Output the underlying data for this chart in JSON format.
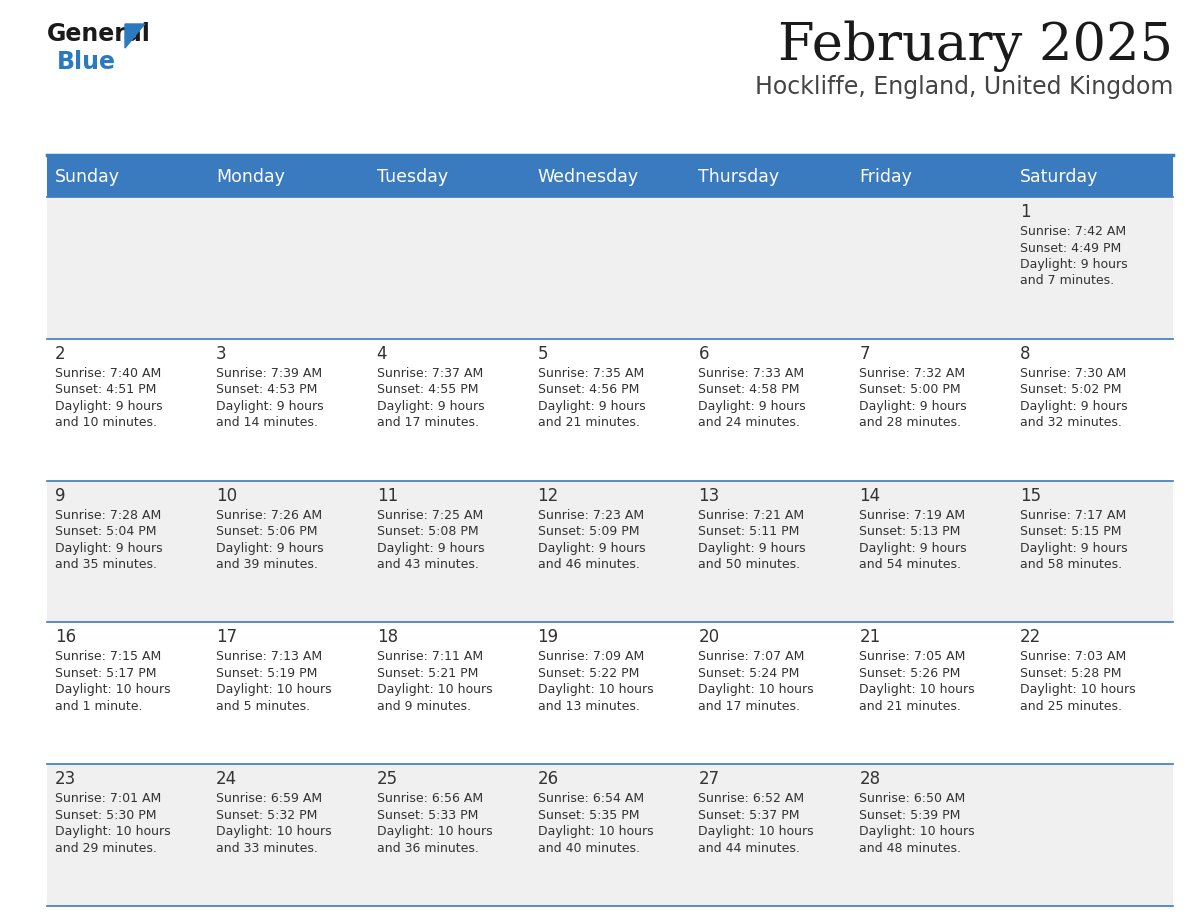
{
  "title": "February 2025",
  "subtitle": "Hockliffe, England, United Kingdom",
  "days_of_week": [
    "Sunday",
    "Monday",
    "Tuesday",
    "Wednesday",
    "Thursday",
    "Friday",
    "Saturday"
  ],
  "header_bg": "#3a7abf",
  "header_text": "#ffffff",
  "row_bg_odd": "#f0f0f0",
  "row_bg_even": "#ffffff",
  "border_color": "#3a7abf",
  "text_color": "#333333",
  "title_color": "#1a1a1a",
  "subtitle_color": "#444444",
  "calendar_data": [
    [
      null,
      null,
      null,
      null,
      null,
      null,
      {
        "day": "1",
        "sunrise": "7:42 AM",
        "sunset": "4:49 PM",
        "daylight": "9 hours",
        "daylight2": "and 7 minutes."
      }
    ],
    [
      {
        "day": "2",
        "sunrise": "7:40 AM",
        "sunset": "4:51 PM",
        "daylight": "9 hours",
        "daylight2": "and 10 minutes."
      },
      {
        "day": "3",
        "sunrise": "7:39 AM",
        "sunset": "4:53 PM",
        "daylight": "9 hours",
        "daylight2": "and 14 minutes."
      },
      {
        "day": "4",
        "sunrise": "7:37 AM",
        "sunset": "4:55 PM",
        "daylight": "9 hours",
        "daylight2": "and 17 minutes."
      },
      {
        "day": "5",
        "sunrise": "7:35 AM",
        "sunset": "4:56 PM",
        "daylight": "9 hours",
        "daylight2": "and 21 minutes."
      },
      {
        "day": "6",
        "sunrise": "7:33 AM",
        "sunset": "4:58 PM",
        "daylight": "9 hours",
        "daylight2": "and 24 minutes."
      },
      {
        "day": "7",
        "sunrise": "7:32 AM",
        "sunset": "5:00 PM",
        "daylight": "9 hours",
        "daylight2": "and 28 minutes."
      },
      {
        "day": "8",
        "sunrise": "7:30 AM",
        "sunset": "5:02 PM",
        "daylight": "9 hours",
        "daylight2": "and 32 minutes."
      }
    ],
    [
      {
        "day": "9",
        "sunrise": "7:28 AM",
        "sunset": "5:04 PM",
        "daylight": "9 hours",
        "daylight2": "and 35 minutes."
      },
      {
        "day": "10",
        "sunrise": "7:26 AM",
        "sunset": "5:06 PM",
        "daylight": "9 hours",
        "daylight2": "and 39 minutes."
      },
      {
        "day": "11",
        "sunrise": "7:25 AM",
        "sunset": "5:08 PM",
        "daylight": "9 hours",
        "daylight2": "and 43 minutes."
      },
      {
        "day": "12",
        "sunrise": "7:23 AM",
        "sunset": "5:09 PM",
        "daylight": "9 hours",
        "daylight2": "and 46 minutes."
      },
      {
        "day": "13",
        "sunrise": "7:21 AM",
        "sunset": "5:11 PM",
        "daylight": "9 hours",
        "daylight2": "and 50 minutes."
      },
      {
        "day": "14",
        "sunrise": "7:19 AM",
        "sunset": "5:13 PM",
        "daylight": "9 hours",
        "daylight2": "and 54 minutes."
      },
      {
        "day": "15",
        "sunrise": "7:17 AM",
        "sunset": "5:15 PM",
        "daylight": "9 hours",
        "daylight2": "and 58 minutes."
      }
    ],
    [
      {
        "day": "16",
        "sunrise": "7:15 AM",
        "sunset": "5:17 PM",
        "daylight": "10 hours",
        "daylight2": "and 1 minute."
      },
      {
        "day": "17",
        "sunrise": "7:13 AM",
        "sunset": "5:19 PM",
        "daylight": "10 hours",
        "daylight2": "and 5 minutes."
      },
      {
        "day": "18",
        "sunrise": "7:11 AM",
        "sunset": "5:21 PM",
        "daylight": "10 hours",
        "daylight2": "and 9 minutes."
      },
      {
        "day": "19",
        "sunrise": "7:09 AM",
        "sunset": "5:22 PM",
        "daylight": "10 hours",
        "daylight2": "and 13 minutes."
      },
      {
        "day": "20",
        "sunrise": "7:07 AM",
        "sunset": "5:24 PM",
        "daylight": "10 hours",
        "daylight2": "and 17 minutes."
      },
      {
        "day": "21",
        "sunrise": "7:05 AM",
        "sunset": "5:26 PM",
        "daylight": "10 hours",
        "daylight2": "and 21 minutes."
      },
      {
        "day": "22",
        "sunrise": "7:03 AM",
        "sunset": "5:28 PM",
        "daylight": "10 hours",
        "daylight2": "and 25 minutes."
      }
    ],
    [
      {
        "day": "23",
        "sunrise": "7:01 AM",
        "sunset": "5:30 PM",
        "daylight": "10 hours",
        "daylight2": "and 29 minutes."
      },
      {
        "day": "24",
        "sunrise": "6:59 AM",
        "sunset": "5:32 PM",
        "daylight": "10 hours",
        "daylight2": "and 33 minutes."
      },
      {
        "day": "25",
        "sunrise": "6:56 AM",
        "sunset": "5:33 PM",
        "daylight": "10 hours",
        "daylight2": "and 36 minutes."
      },
      {
        "day": "26",
        "sunrise": "6:54 AM",
        "sunset": "5:35 PM",
        "daylight": "10 hours",
        "daylight2": "and 40 minutes."
      },
      {
        "day": "27",
        "sunrise": "6:52 AM",
        "sunset": "5:37 PM",
        "daylight": "10 hours",
        "daylight2": "and 44 minutes."
      },
      {
        "day": "28",
        "sunrise": "6:50 AM",
        "sunset": "5:39 PM",
        "daylight": "10 hours",
        "daylight2": "and 48 minutes."
      },
      null
    ]
  ],
  "figsize": [
    11.88,
    9.18
  ],
  "dpi": 100
}
